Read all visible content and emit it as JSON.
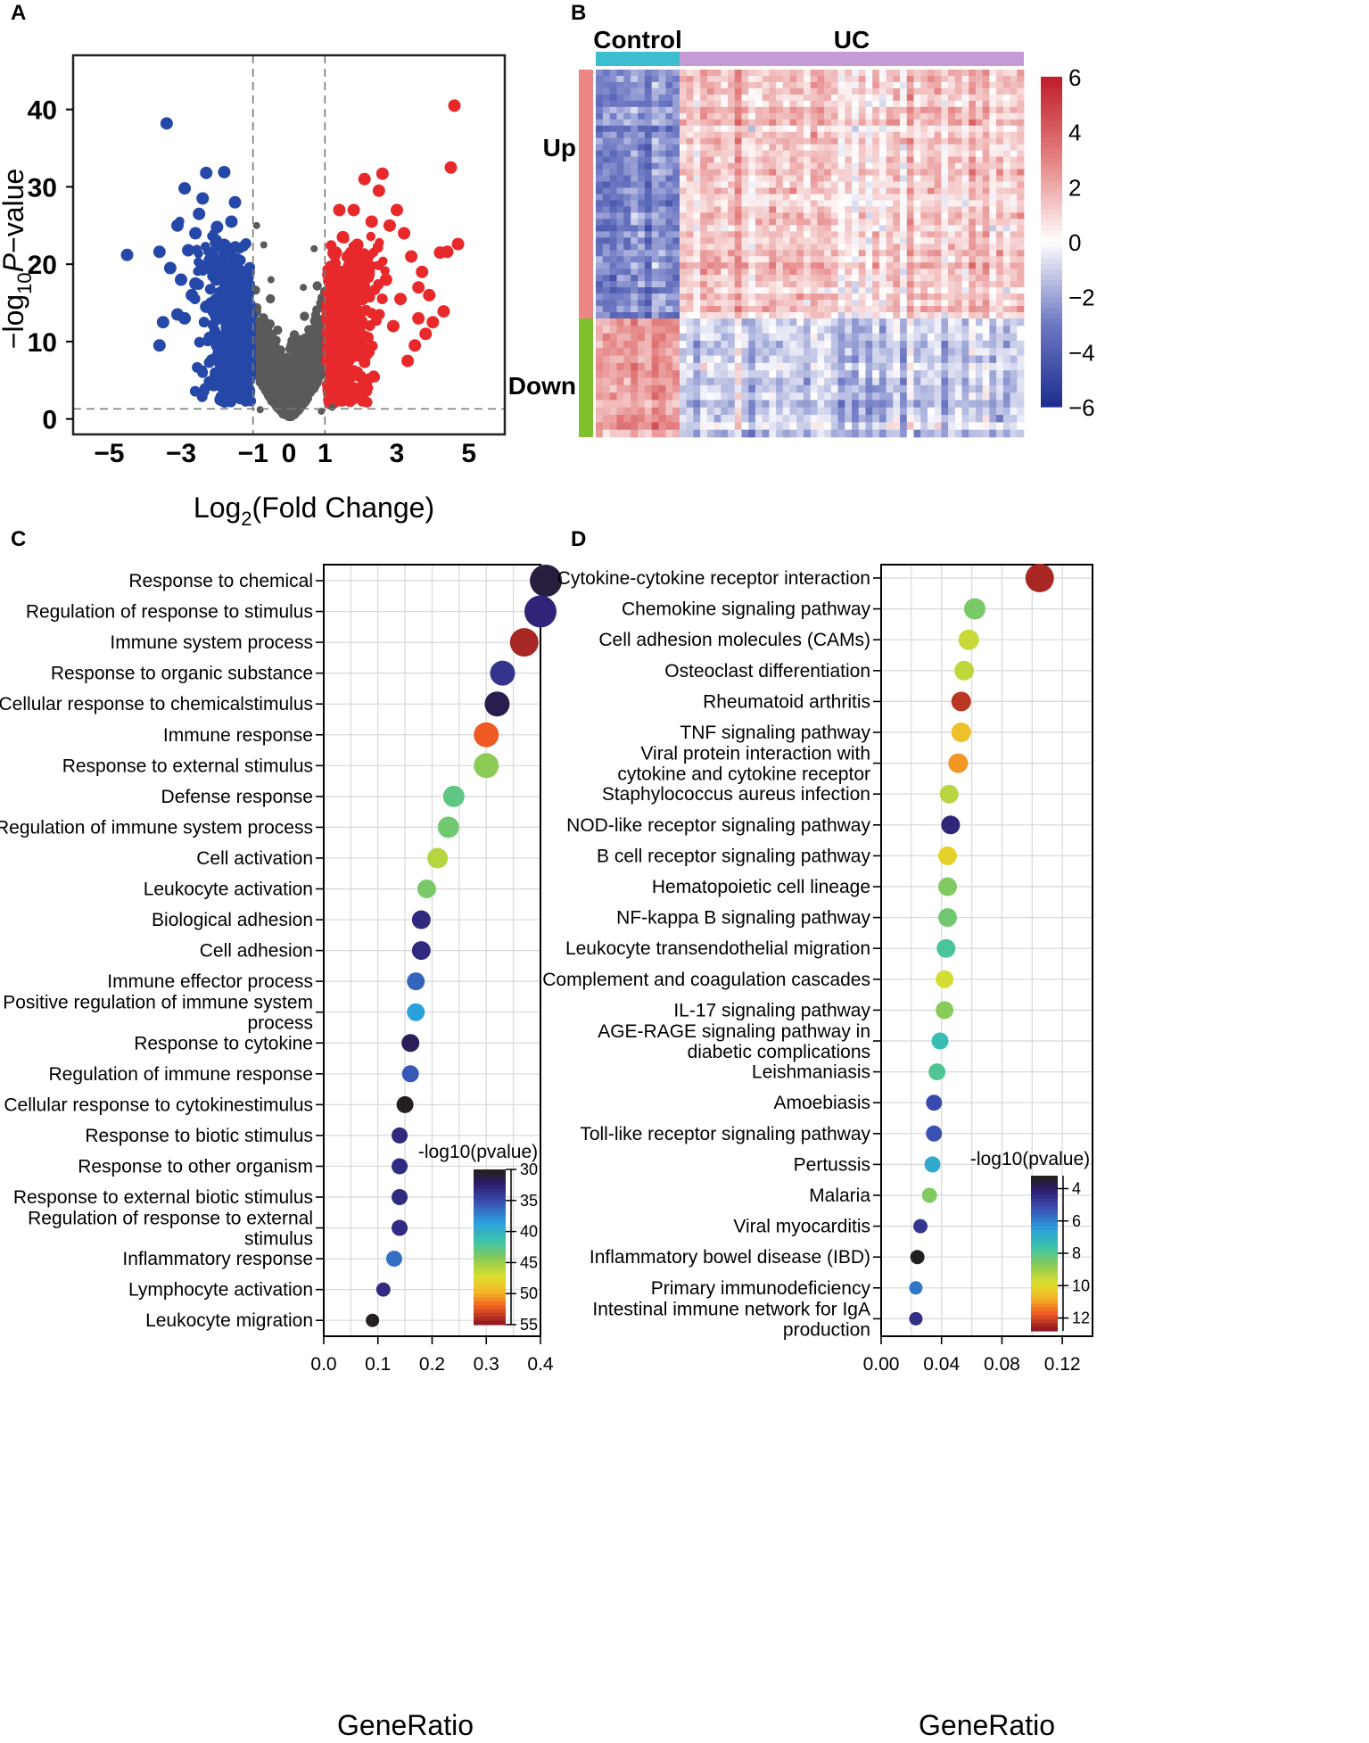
{
  "figure_caption": "",
  "colors": {
    "up": "#e8292b",
    "down": "#2548a8",
    "ns": "#5a5a5a",
    "control_bar": "#3bbfcf",
    "uc_bar": "#c49bd4",
    "up_side": "#ef8686",
    "down_side": "#7ec02e",
    "neg": "#1e2f8f",
    "pos": "#c01f2b"
  },
  "chart_data": [
    {
      "panel": "A",
      "type": "scatter",
      "title": "",
      "xlabel": "Log2(Fold Change)",
      "ylabel": "-log10P-value",
      "xlim": [
        -6,
        6
      ],
      "ylim": [
        -2,
        47
      ],
      "xticks": [
        -5,
        -3,
        -1,
        0,
        1,
        3,
        5
      ],
      "xtick_labels": [
        "−5",
        "−3",
        "−1",
        "0",
        "1",
        "3",
        "5"
      ],
      "yticks": [
        0,
        10,
        20,
        30,
        40
      ],
      "ytick_labels": [
        "0",
        "10",
        "20",
        "30",
        "40"
      ],
      "vlines": [
        -1,
        1
      ],
      "hline": 1.3,
      "highlight_up": [
        [
          4.6,
          40.5
        ],
        [
          4.5,
          32.5
        ],
        [
          4.7,
          22.6
        ],
        [
          4.2,
          21.5
        ],
        [
          4.4,
          21.6
        ],
        [
          4.3,
          13.9
        ],
        [
          2.6,
          31.7
        ],
        [
          2.1,
          31.0
        ],
        [
          3.0,
          27.0
        ],
        [
          2.8,
          25.0
        ],
        [
          3.4,
          21.0
        ],
        [
          3.7,
          19.0
        ],
        [
          2.5,
          29.5
        ],
        [
          1.8,
          27.0
        ],
        [
          2.3,
          25.5
        ],
        [
          3.2,
          24.0
        ],
        [
          3.6,
          17.0
        ],
        [
          3.9,
          16.0
        ],
        [
          3.8,
          11.0
        ],
        [
          3.5,
          9.5
        ],
        [
          3.3,
          7.5
        ],
        [
          2.9,
          12.0
        ],
        [
          2.7,
          18.0
        ],
        [
          3.1,
          15.5
        ],
        [
          1.9,
          22.5
        ],
        [
          1.5,
          23.5
        ],
        [
          1.3,
          21.5
        ],
        [
          3.6,
          13.0
        ],
        [
          4.0,
          12.5
        ],
        [
          1.4,
          27.0
        ]
      ],
      "highlight_down": [
        [
          -3.4,
          38.2
        ],
        [
          -2.3,
          31.8
        ],
        [
          -1.8,
          31.9
        ],
        [
          -2.9,
          29.8
        ],
        [
          -2.4,
          28.5
        ],
        [
          -4.5,
          21.2
        ],
        [
          -3.6,
          21.6
        ],
        [
          -3.1,
          25.0
        ],
        [
          -2.6,
          24.0
        ],
        [
          -2.8,
          21.8
        ],
        [
          -3.3,
          19.5
        ],
        [
          -3.0,
          18.0
        ],
        [
          -2.7,
          16.0
        ],
        [
          -3.5,
          12.5
        ],
        [
          -3.1,
          13.5
        ],
        [
          -2.9,
          13.0
        ],
        [
          -3.6,
          9.5
        ],
        [
          -2.2,
          10.5
        ],
        [
          -2.0,
          8.0
        ],
        [
          -1.9,
          2.5
        ],
        [
          -2.5,
          26.5
        ],
        [
          -2.0,
          24.8
        ],
        [
          -1.6,
          25.5
        ],
        [
          -2.2,
          20.5
        ],
        [
          -1.8,
          22.5
        ],
        [
          -2.1,
          18.5
        ],
        [
          -1.7,
          5.5
        ],
        [
          -2.3,
          14.5
        ],
        [
          -1.5,
          28.0
        ],
        [
          -2.6,
          17.5
        ]
      ],
      "highlight_ns": [
        [
          -0.9,
          25.0
        ],
        [
          -0.7,
          22.5
        ],
        [
          0.7,
          22.0
        ],
        [
          -0.5,
          18.0
        ],
        [
          0.4,
          17.0
        ],
        [
          -0.3,
          3.0
        ],
        [
          0.2,
          2.5
        ],
        [
          0.9,
          1.0
        ],
        [
          -0.8,
          1.2
        ],
        [
          1.2,
          1.5
        ]
      ]
    },
    {
      "panel": "B",
      "type": "heatmap",
      "title": "",
      "groups": [
        "Control",
        "UC"
      ],
      "row_groups": [
        "Up",
        "Down"
      ],
      "color_scale_min": -6,
      "color_scale_max": 6,
      "color_scale_ticks": [
        6,
        4,
        2,
        0,
        -2,
        -4,
        -6
      ],
      "color_scale_labels": [
        "6",
        "4",
        "2",
        "0",
        "−2",
        "−4",
        "−6"
      ],
      "control_columns": 12,
      "uc_columns": 50,
      "up_rows": 40,
      "down_rows": 16,
      "up_control_mean": -2.8,
      "up_uc_mean": 1.2,
      "down_control_mean": 2.4,
      "down_uc_mean": -1.1
    },
    {
      "panel": "C",
      "type": "scatter",
      "title": "",
      "xlabel": "GeneRatio",
      "ylabel": "",
      "xlim": [
        0.0,
        0.4
      ],
      "xticks": [
        0.0,
        0.1,
        0.2,
        0.3,
        0.4
      ],
      "xtick_labels": [
        "0.0",
        "0.1",
        "0.2",
        "0.3",
        "0.4"
      ],
      "legend_title": "-log10(pvalue)",
      "legend_position": "bottom-right",
      "legend_ticks": [
        30,
        35,
        40,
        45,
        50,
        55
      ],
      "legend_range": [
        30,
        55
      ],
      "terms": [
        {
          "line1": "Response to chemical",
          "line2": "",
          "ratio": 0.41,
          "value": 30.8,
          "size": 34
        },
        {
          "line1": "Regulation of response to stimulus",
          "line2": "",
          "ratio": 0.4,
          "value": 32.5,
          "size": 34
        },
        {
          "line1": "Immune system process",
          "line2": "",
          "ratio": 0.37,
          "value": 54.5,
          "size": 30
        },
        {
          "line1": "Response to organic substance",
          "line2": "",
          "ratio": 0.33,
          "value": 33.5,
          "size": 26
        },
        {
          "line1": "Cellular response to chemicalstimulus",
          "line2": "",
          "ratio": 0.32,
          "value": 31.2,
          "size": 26
        },
        {
          "line1": "Immune response",
          "line2": "",
          "ratio": 0.3,
          "value": 52.5,
          "size": 26
        },
        {
          "line1": "Response to external stimulus",
          "line2": "",
          "ratio": 0.3,
          "value": 44.5,
          "size": 26
        },
        {
          "line1": "Defense response",
          "line2": "",
          "ratio": 0.24,
          "value": 42.8,
          "size": 22
        },
        {
          "line1": "Regulation of immune system process",
          "line2": "",
          "ratio": 0.23,
          "value": 43.5,
          "size": 22
        },
        {
          "line1": "Cell activation",
          "line2": "",
          "ratio": 0.21,
          "value": 46.0,
          "size": 21
        },
        {
          "line1": "Leukocyte activation",
          "line2": "",
          "ratio": 0.19,
          "value": 43.8,
          "size": 19
        },
        {
          "line1": "Biological adhesion",
          "line2": "",
          "ratio": 0.18,
          "value": 32.8,
          "size": 19
        },
        {
          "line1": "Cell adhesion",
          "line2": "",
          "ratio": 0.18,
          "value": 32.8,
          "size": 19
        },
        {
          "line1": "Immune effector process",
          "line2": "",
          "ratio": 0.17,
          "value": 36.0,
          "size": 18
        },
        {
          "line1": "Positive regulation of immune system",
          "line2": "process",
          "ratio": 0.17,
          "value": 38.5,
          "size": 18
        },
        {
          "line1": "Response to cytokine",
          "line2": "",
          "ratio": 0.16,
          "value": 31.5,
          "size": 18
        },
        {
          "line1": "Regulation of immune response",
          "line2": "",
          "ratio": 0.16,
          "value": 35.5,
          "size": 17
        },
        {
          "line1": "Cellular response to cytokinestimulus",
          "line2": "",
          "ratio": 0.15,
          "value": 30.0,
          "size": 17
        },
        {
          "line1": "Response to biotic stimulus",
          "line2": "",
          "ratio": 0.14,
          "value": 32.8,
          "size": 16
        },
        {
          "line1": "Response to other organism",
          "line2": "",
          "ratio": 0.14,
          "value": 33.0,
          "size": 16
        },
        {
          "line1": "Response to external biotic stimulus",
          "line2": "",
          "ratio": 0.14,
          "value": 33.0,
          "size": 16
        },
        {
          "line1": "Regulation of response to external",
          "line2": "stimulus",
          "ratio": 0.14,
          "value": 33.0,
          "size": 16
        },
        {
          "line1": "Inflammatory response",
          "line2": "",
          "ratio": 0.13,
          "value": 36.5,
          "size": 16
        },
        {
          "line1": "Lymphocyte activation",
          "line2": "",
          "ratio": 0.11,
          "value": 33.0,
          "size": 14
        },
        {
          "line1": "Leukocyte migration",
          "line2": "",
          "ratio": 0.09,
          "value": 30.0,
          "size": 13
        }
      ]
    },
    {
      "panel": "D",
      "type": "scatter",
      "title": "",
      "xlabel": "GeneRatio",
      "ylabel": "",
      "xlim": [
        0.0,
        0.14
      ],
      "xticks": [
        0.0,
        0.04,
        0.08,
        0.12
      ],
      "xtick_labels": [
        "0.00",
        "0.04",
        "0.08",
        "0.12"
      ],
      "legend_title": "-log10(pvalue)",
      "legend_position": "bottom-right",
      "legend_ticks": [
        4,
        6,
        8,
        10,
        12
      ],
      "legend_range": [
        3.2,
        12.8
      ],
      "terms": [
        {
          "line1": "Cytokine-cytokine receptor interaction",
          "line2": "",
          "ratio": 0.105,
          "value": 12.6,
          "size": 30
        },
        {
          "line1": "Chemokine signaling pathway",
          "line2": "",
          "ratio": 0.062,
          "value": 8.5,
          "size": 22
        },
        {
          "line1": "Cell adhesion molecules (CAMs)",
          "line2": "",
          "ratio": 0.058,
          "value": 9.6,
          "size": 21
        },
        {
          "line1": "Osteoclast differentiation",
          "line2": "",
          "ratio": 0.055,
          "value": 9.5,
          "size": 20
        },
        {
          "line1": "Rheumatoid arthritis",
          "line2": "",
          "ratio": 0.053,
          "value": 12.4,
          "size": 20
        },
        {
          "line1": "TNF signaling pathway",
          "line2": "",
          "ratio": 0.053,
          "value": 10.6,
          "size": 20
        },
        {
          "line1": "Viral protein interaction with",
          "line2": "cytokine and cytokine receptor",
          "ratio": 0.051,
          "value": 11.2,
          "size": 20
        },
        {
          "line1": "Staphylococcus aureus infection",
          "line2": "",
          "ratio": 0.045,
          "value": 9.4,
          "size": 19
        },
        {
          "line1": "NOD-like receptor signaling pathway",
          "line2": "",
          "ratio": 0.046,
          "value": 4.2,
          "size": 19
        },
        {
          "line1": "B cell receptor signaling pathway",
          "line2": "",
          "ratio": 0.044,
          "value": 10.2,
          "size": 19
        },
        {
          "line1": "Hematopoietic cell lineage",
          "line2": "",
          "ratio": 0.044,
          "value": 8.6,
          "size": 19
        },
        {
          "line1": "NF-kappa B signaling pathway",
          "line2": "",
          "ratio": 0.044,
          "value": 8.4,
          "size": 19
        },
        {
          "line1": "Leukocyte transendothelial migration",
          "line2": "",
          "ratio": 0.043,
          "value": 7.8,
          "size": 19
        },
        {
          "line1": "Complement and coagulation cascades",
          "line2": "",
          "ratio": 0.042,
          "value": 9.8,
          "size": 18
        },
        {
          "line1": "IL-17 signaling pathway",
          "line2": "",
          "ratio": 0.042,
          "value": 8.7,
          "size": 18
        },
        {
          "line1": "AGE-RAGE signaling pathway in",
          "line2": "diabetic complications",
          "ratio": 0.039,
          "value": 7.4,
          "size": 17
        },
        {
          "line1": "Leishmaniasis",
          "line2": "",
          "ratio": 0.037,
          "value": 7.9,
          "size": 17
        },
        {
          "line1": "Amoebiasis",
          "line2": "",
          "ratio": 0.035,
          "value": 5.1,
          "size": 16
        },
        {
          "line1": "Toll-like receptor signaling pathway",
          "line2": "",
          "ratio": 0.035,
          "value": 5.2,
          "size": 16
        },
        {
          "line1": "Pertussis",
          "line2": "",
          "ratio": 0.034,
          "value": 6.8,
          "size": 16
        },
        {
          "line1": "Malaria",
          "line2": "",
          "ratio": 0.032,
          "value": 8.6,
          "size": 15
        },
        {
          "line1": "Viral myocarditis",
          "line2": "",
          "ratio": 0.026,
          "value": 4.6,
          "size": 14
        },
        {
          "line1": "Inflammatory bowel disease (IBD)",
          "line2": "",
          "ratio": 0.024,
          "value": 3.2,
          "size": 14
        },
        {
          "line1": "Primary immunodeficiency",
          "line2": "",
          "ratio": 0.023,
          "value": 5.8,
          "size": 13
        },
        {
          "line1": "Intestinal immune network for IgA",
          "line2": "production",
          "ratio": 0.023,
          "value": 4.4,
          "size": 13
        }
      ]
    }
  ]
}
